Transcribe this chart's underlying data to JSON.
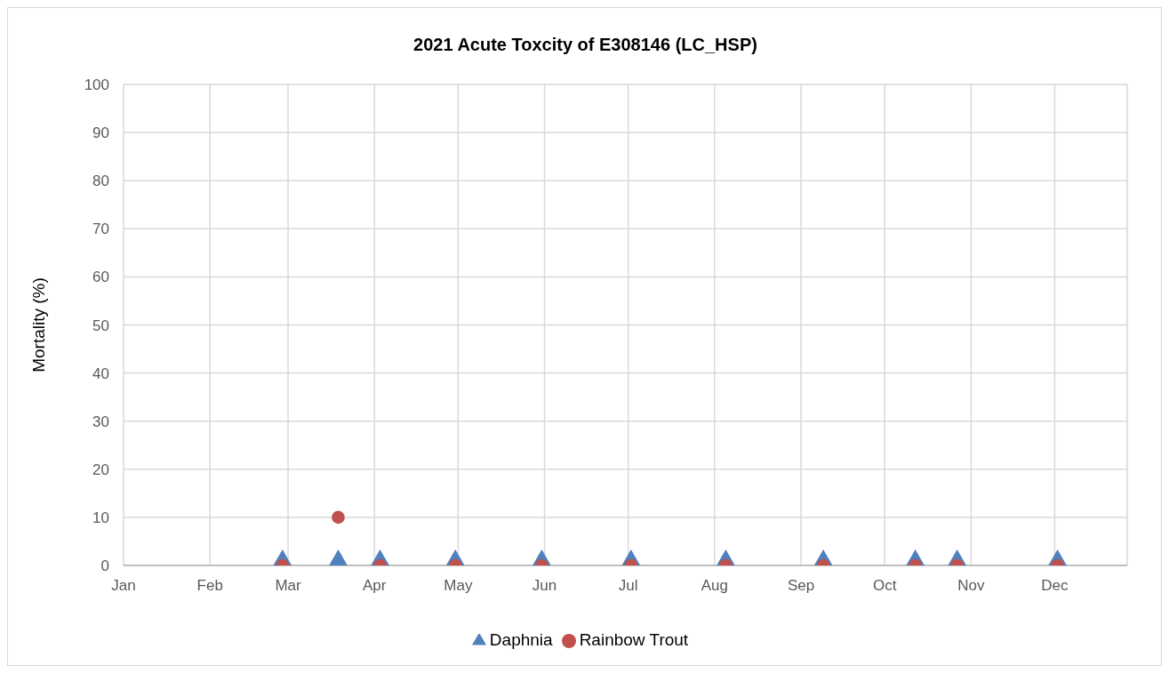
{
  "chart_data": {
    "type": "scatter",
    "title": "2021 Acute Toxcity of E308146 (LC_HSP)",
    "ylabel": "Mortality (%)",
    "x": [
      "2021-02-27",
      "2021-03-19",
      "2021-04-03",
      "2021-04-30",
      "2021-05-31",
      "2021-07-02",
      "2021-08-05",
      "2021-09-09",
      "2021-10-12",
      "2021-10-27",
      "2021-12-02"
    ],
    "series": [
      {
        "name": "Daphnia",
        "color": "#4f81bd",
        "marker": "triangle",
        "values": [
          0,
          0,
          0,
          0,
          0,
          0,
          0,
          0,
          0,
          0,
          0
        ]
      },
      {
        "name": "Rainbow Trout",
        "color": "#c0504d",
        "marker": "circle",
        "values": [
          0,
          10,
          0,
          0,
          0,
          0,
          0,
          0,
          0,
          0,
          0
        ]
      }
    ],
    "xlim": [
      "2021-01-01",
      "2021-12-27"
    ],
    "xticks": [
      {
        "value": "2021-01-01",
        "label": "Jan"
      },
      {
        "value": "2021-02-01",
        "label": "Feb"
      },
      {
        "value": "2021-03-01",
        "label": "Mar"
      },
      {
        "value": "2021-04-01",
        "label": "Apr"
      },
      {
        "value": "2021-05-01",
        "label": "May"
      },
      {
        "value": "2021-06-01",
        "label": "Jun"
      },
      {
        "value": "2021-07-01",
        "label": "Jul"
      },
      {
        "value": "2021-08-01",
        "label": "Aug"
      },
      {
        "value": "2021-09-01",
        "label": "Sep"
      },
      {
        "value": "2021-10-01",
        "label": "Oct"
      },
      {
        "value": "2021-11-01",
        "label": "Nov"
      },
      {
        "value": "2021-12-01",
        "label": "Dec"
      }
    ],
    "ylim": [
      0,
      100
    ],
    "yticks": [
      0,
      10,
      20,
      30,
      40,
      50,
      60,
      70,
      80,
      90,
      100
    ],
    "grid": true,
    "legend": "bottom"
  }
}
